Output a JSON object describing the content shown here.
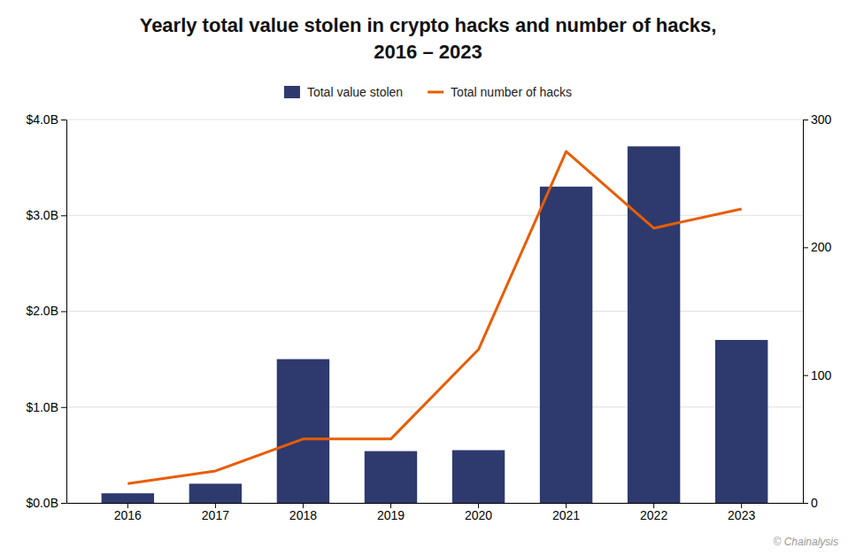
{
  "chart_data": {
    "type": "bar",
    "title": "Yearly total value stolen in crypto hacks and number of hacks,",
    "subtitle": "2016 – 2023",
    "categories": [
      "2016",
      "2017",
      "2018",
      "2019",
      "2020",
      "2021",
      "2022",
      "2023"
    ],
    "series": [
      {
        "name": "Total value stolen",
        "type": "bar",
        "color": "#2e3a6e",
        "values": [
          0.1,
          0.2,
          1.5,
          0.54,
          0.55,
          3.3,
          3.72,
          1.7
        ]
      },
      {
        "name": "Total number of hacks",
        "type": "line",
        "axis": "y2",
        "color": "#e85d04",
        "values": [
          15,
          25,
          50,
          50,
          120,
          275,
          215,
          230
        ]
      }
    ],
    "ylim": [
      0,
      4.0
    ],
    "yticks": [
      {
        "value": 0.0,
        "label": "$0.0B"
      },
      {
        "value": 1.0,
        "label": "$1.0B"
      },
      {
        "value": 2.0,
        "label": "$2.0B"
      },
      {
        "value": 3.0,
        "label": "$3.0B"
      },
      {
        "value": 4.0,
        "label": "$4.0B"
      }
    ],
    "y2lim": [
      0,
      300
    ],
    "y2ticks": [
      0,
      100,
      200,
      300
    ],
    "grid": true,
    "legend": "top",
    "annotations": [
      "© Chainalysis"
    ]
  }
}
